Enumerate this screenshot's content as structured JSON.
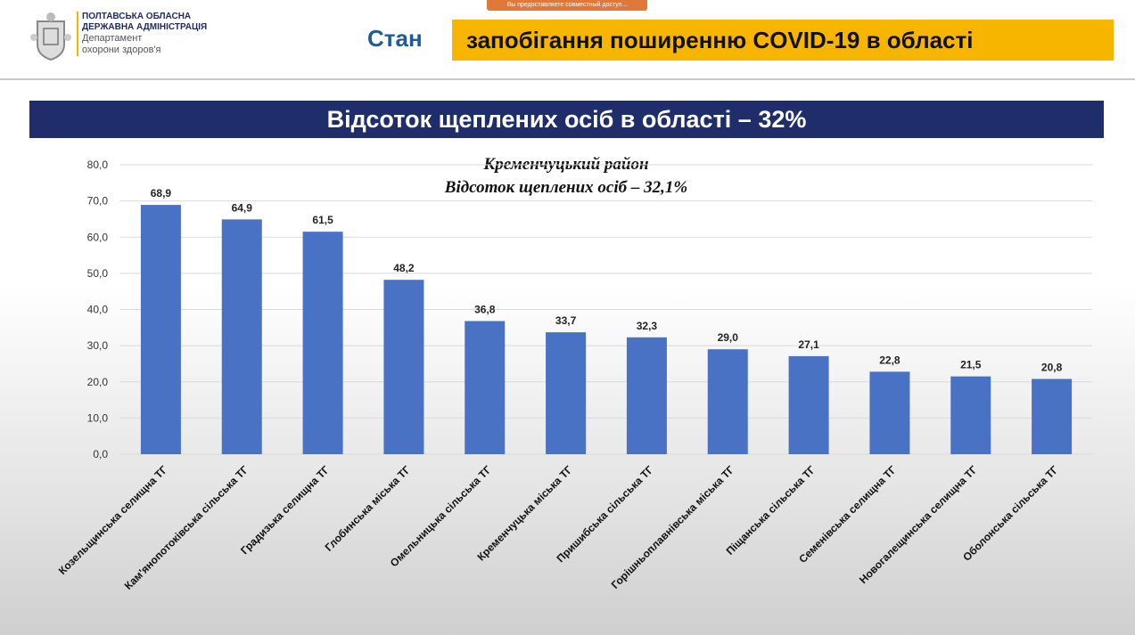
{
  "header": {
    "org_line1": "ПОЛТАВСЬКА ОБЛАСНА",
    "org_line2": "ДЕРЖАВНА АДМІНІСТРАЦІЯ",
    "dept_line1": "Департамент",
    "dept_line2": "охорони здоров'я",
    "notice": "Вы предоставляете совместный доступ...",
    "title_prefix": "Стан",
    "title_main": "запобігання поширенню COVID-19 в області"
  },
  "banner": "Відсоток щеплених осіб в області – 32%",
  "chart_data": {
    "type": "bar",
    "title": "Кременчуцький район",
    "subtitle": "Відсоток щеплених осіб – 32,1%",
    "xlabel": "",
    "ylabel": "",
    "ylim": [
      0,
      80
    ],
    "yticks": [
      "0,0",
      "10,0",
      "20,0",
      "30,0",
      "40,0",
      "50,0",
      "60,0",
      "70,0",
      "80,0"
    ],
    "grid": true,
    "bar_color": "#4a72c4",
    "categories": [
      "Козельщинська селищна ТГ",
      "Кам'янопотоківська сільська ТГ",
      "Градизька селищна ТГ",
      "Глобинська міська ТГ",
      "Омельницька сільська ТГ",
      "Кременчуцька міська ТГ",
      "Пришибська сільська ТГ",
      "Горішньоплавнівська міська ТГ",
      "Піщанська сільська ТГ",
      "Семенівська селищна ТГ",
      "Новогалещинська селищна ТГ",
      "Оболонська сільська ТГ"
    ],
    "values": [
      68.9,
      64.9,
      61.5,
      48.2,
      36.8,
      33.7,
      32.3,
      29.0,
      27.1,
      22.8,
      21.5,
      20.8
    ],
    "labels": [
      "68,9",
      "64,9",
      "61,5",
      "48,2",
      "36,8",
      "33,7",
      "32,3",
      "29,0",
      "27,1",
      "22,8",
      "21,5",
      "20,8"
    ]
  }
}
